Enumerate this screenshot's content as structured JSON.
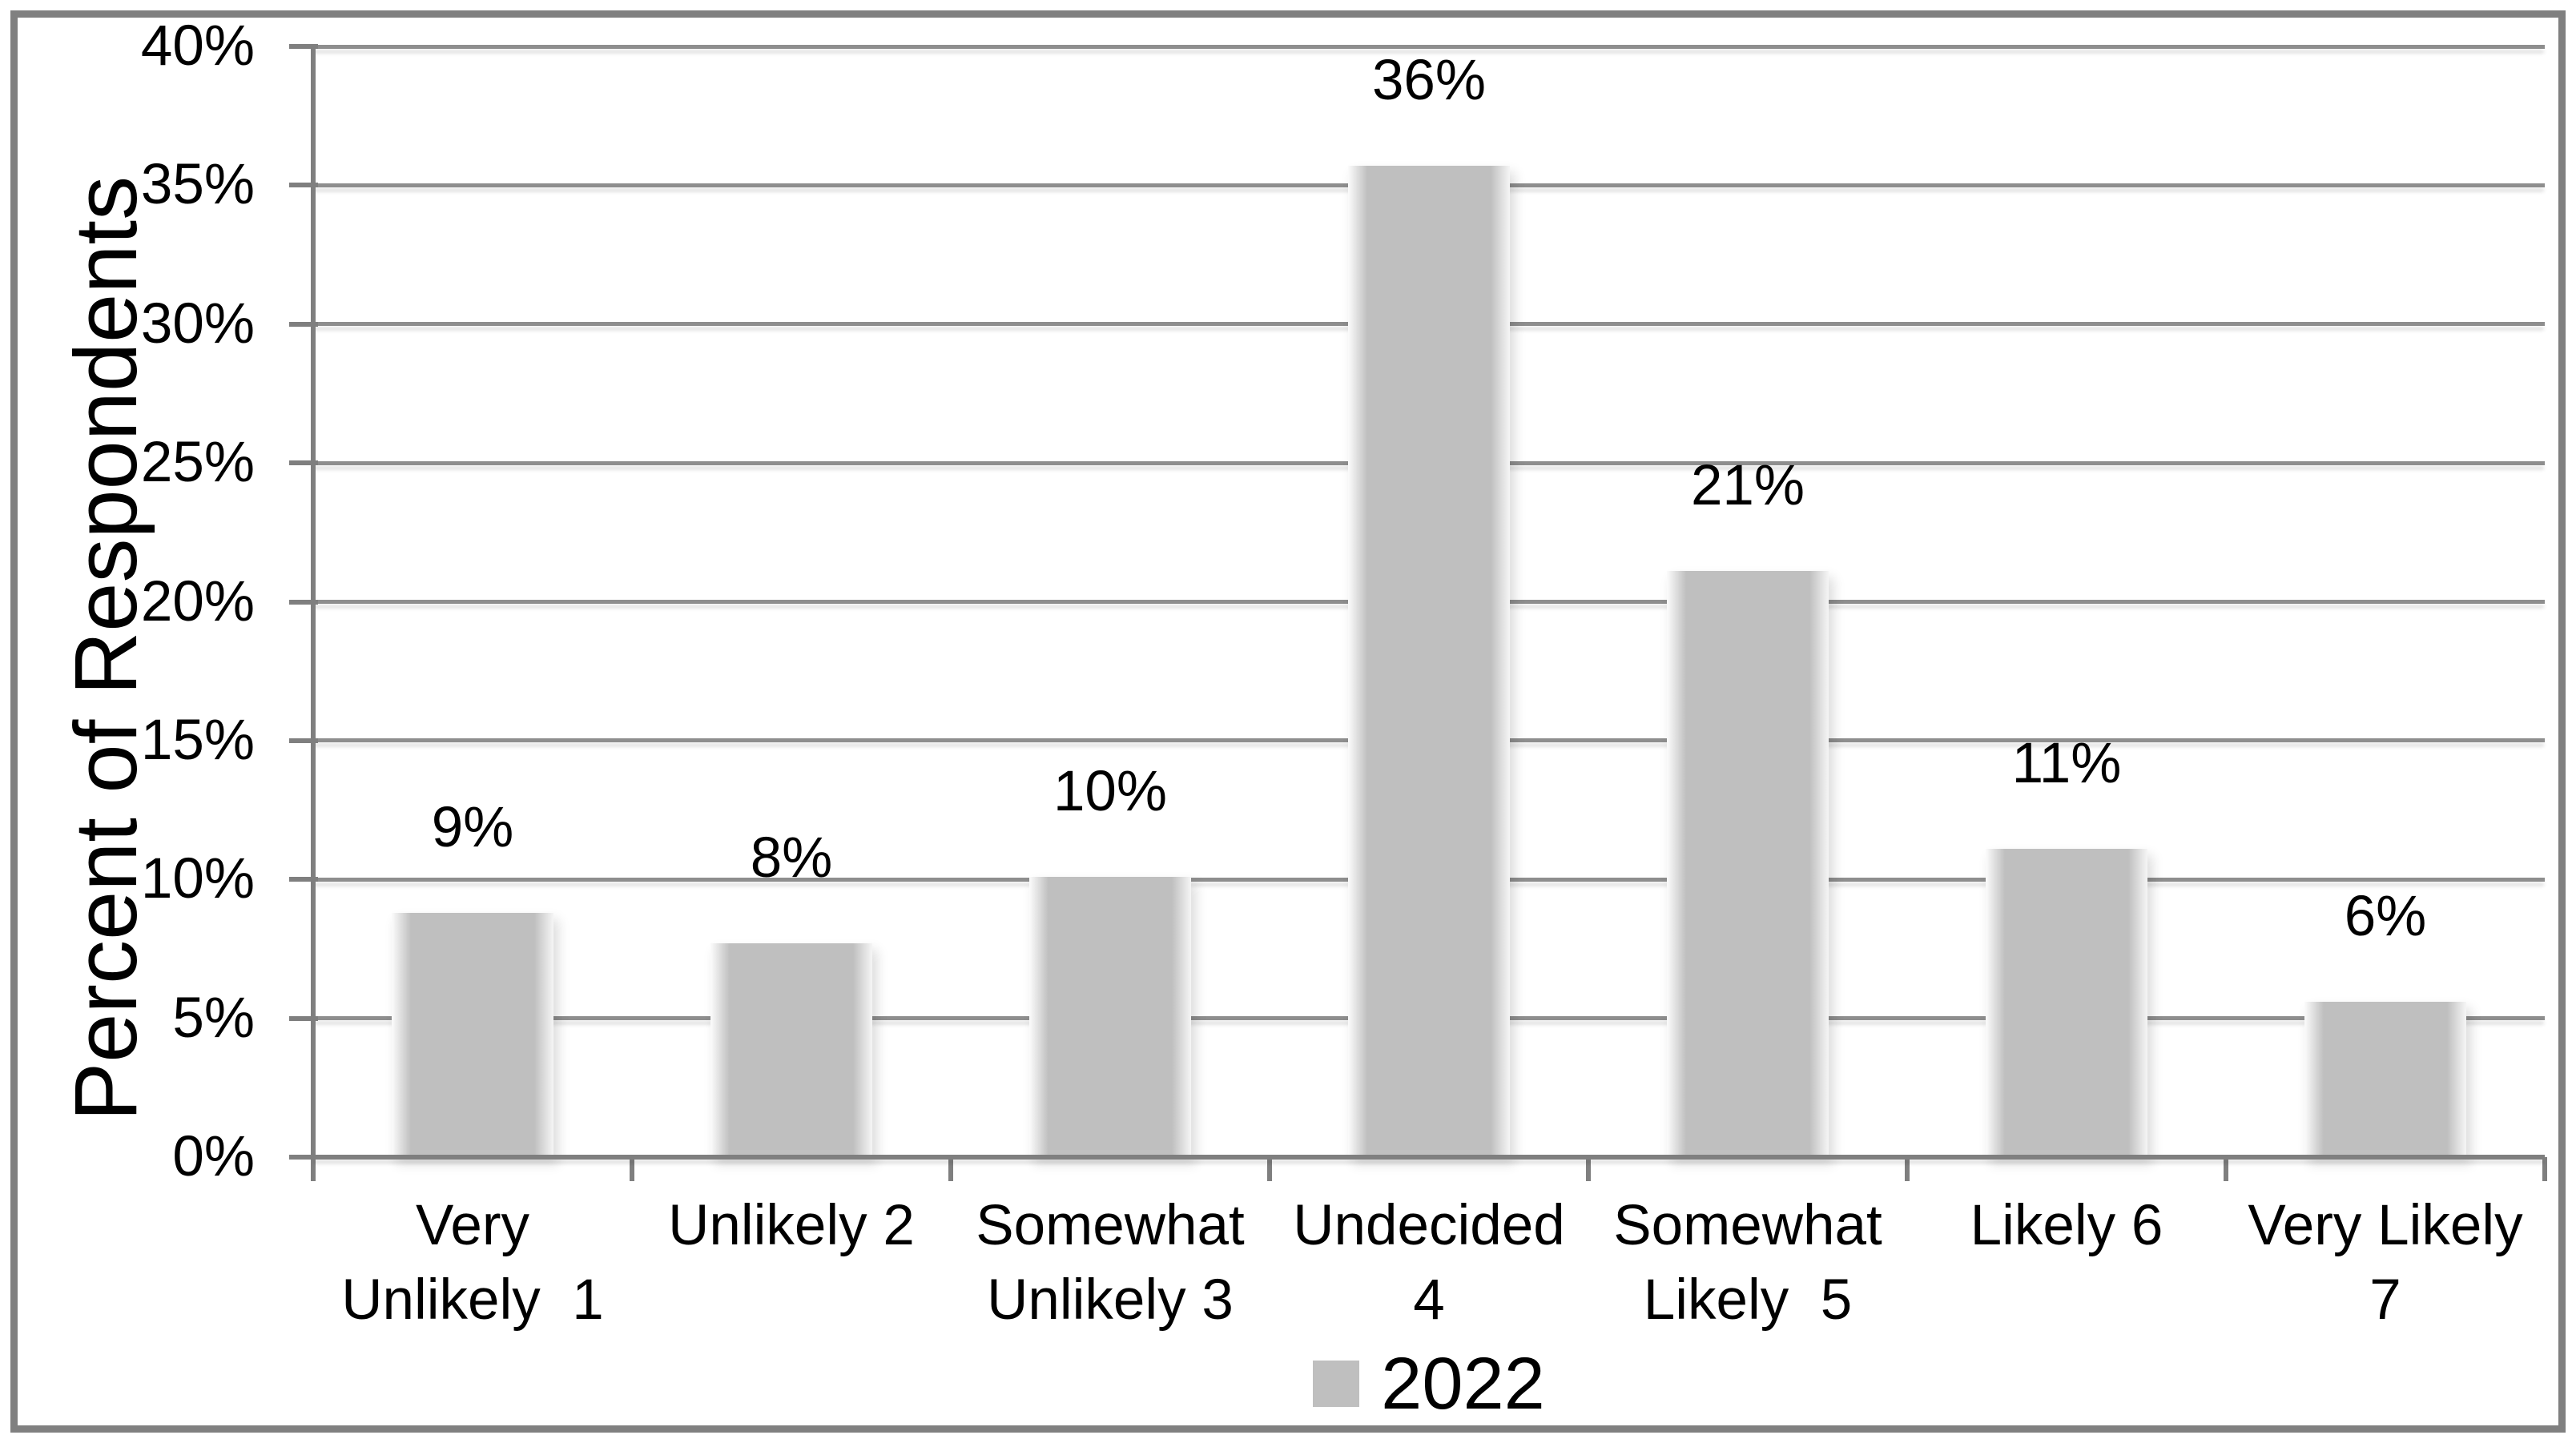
{
  "chart_data": {
    "type": "bar",
    "title": "",
    "ylabel": "Percent of Respondents",
    "xlabel": "",
    "ylim": [
      0,
      40
    ],
    "grid": true,
    "legend_position": "bottom-center",
    "y_ticks": [
      {
        "value": 0,
        "label": "0%"
      },
      {
        "value": 5,
        "label": "5%"
      },
      {
        "value": 10,
        "label": "10%"
      },
      {
        "value": 15,
        "label": "15%"
      },
      {
        "value": 20,
        "label": "20%"
      },
      {
        "value": 25,
        "label": "25%"
      },
      {
        "value": 30,
        "label": "30%"
      },
      {
        "value": 35,
        "label": "35%"
      },
      {
        "value": 40,
        "label": "40%"
      }
    ],
    "categories": [
      {
        "name": "Very Unlikely 1",
        "lines": [
          "Very",
          "Unlikely  1"
        ]
      },
      {
        "name": "Unlikely 2",
        "lines": [
          "Unlikely 2"
        ]
      },
      {
        "name": "Somewhat Unlikely 3",
        "lines": [
          "Somewhat",
          "Unlikely 3"
        ]
      },
      {
        "name": "Undecided 4",
        "lines": [
          "Undecided",
          "4"
        ]
      },
      {
        "name": "Somewhat Likely 5",
        "lines": [
          "Somewhat",
          "Likely  5"
        ]
      },
      {
        "name": "Likely 6",
        "lines": [
          "Likely 6"
        ]
      },
      {
        "name": "Very Likely 7",
        "lines": [
          "Very Likely",
          "7"
        ]
      }
    ],
    "series": [
      {
        "name": "2022",
        "values": [
          8.8,
          7.7,
          10.1,
          35.7,
          21.1,
          11.1,
          5.6
        ],
        "data_labels": [
          "9%",
          "8%",
          "10%",
          "36%",
          "21%",
          "11%",
          "6%"
        ]
      }
    ],
    "colors": {
      "bar_fill": "#BFBFBF",
      "gridline": "#8E8E8E",
      "axis": "#7F7F7F",
      "frame_border": "#808080",
      "text": "#000000",
      "background": "#FFFFFF"
    }
  }
}
